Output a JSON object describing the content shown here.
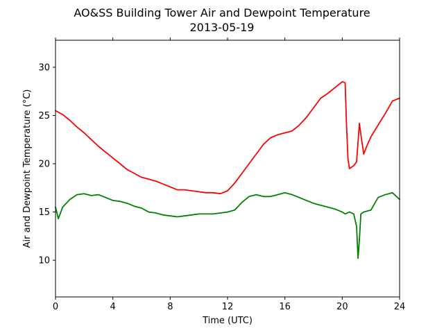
{
  "chart_data": {
    "type": "line",
    "title": "AO&SS Building Tower Air and Dewpoint Temperature",
    "subtitle": "2013-05-19",
    "xlabel": "Time (UTC)",
    "ylabel": "Air and Dewpoint Temperature (°C)",
    "xlim": [
      0,
      24
    ],
    "ylim": [
      6.2,
      32.8
    ],
    "x_ticks": [
      0,
      4,
      8,
      12,
      16,
      20,
      24
    ],
    "y_ticks": [
      10,
      15,
      20,
      25,
      30
    ],
    "grid": false,
    "series": [
      {
        "color": "#ff0000",
        "x": [
          0,
          0.5,
          1,
          1.5,
          2,
          2.5,
          3,
          3.5,
          4,
          4.5,
          5,
          5.5,
          6,
          6.5,
          7,
          7.5,
          8,
          8.5,
          9,
          9.5,
          10,
          10.5,
          11,
          11.5,
          12,
          12.5,
          13,
          13.5,
          14,
          14.5,
          15,
          15.5,
          16,
          16.5,
          17,
          17.5,
          18,
          18.5,
          19,
          19.5,
          20,
          20.2,
          20.3,
          20.4,
          20.5,
          20.8,
          21,
          21.2,
          21.3,
          21.5,
          21.7,
          22,
          22.5,
          23,
          23.5,
          24
        ],
        "y": [
          25.5,
          25.1,
          24.5,
          23.8,
          23.2,
          22.5,
          21.8,
          21.2,
          20.6,
          20.0,
          19.4,
          19.0,
          18.6,
          18.4,
          18.2,
          17.9,
          17.6,
          17.3,
          17.3,
          17.2,
          17.1,
          17.0,
          17.0,
          16.9,
          17.2,
          18.0,
          19.0,
          20.0,
          21.0,
          22.0,
          22.7,
          23.0,
          23.2,
          23.4,
          24.0,
          24.8,
          25.8,
          26.8,
          27.3,
          27.9,
          28.5,
          28.4,
          24.0,
          20.5,
          19.5,
          19.8,
          20.2,
          24.2,
          23.0,
          21.0,
          21.8,
          22.8,
          24.0,
          25.2,
          26.5,
          26.8
        ]
      },
      {
        "color": "#008000",
        "x": [
          0,
          0.2,
          0.5,
          1,
          1.5,
          2,
          2.5,
          3,
          3.5,
          4,
          4.5,
          5,
          5.5,
          6,
          6.5,
          7,
          7.5,
          8,
          8.5,
          9,
          9.5,
          10,
          10.5,
          11,
          11.5,
          12,
          12.5,
          13,
          13.5,
          14,
          14.5,
          15,
          15.5,
          16,
          16.5,
          17,
          17.5,
          18,
          18.5,
          19,
          19.5,
          20,
          20.2,
          20.5,
          20.8,
          21,
          21.1,
          21.2,
          21.3,
          21.5,
          22,
          22.5,
          23,
          23.5,
          24
        ],
        "y": [
          15.5,
          14.3,
          15.5,
          16.3,
          16.8,
          16.9,
          16.7,
          16.8,
          16.5,
          16.2,
          16.1,
          15.9,
          15.6,
          15.4,
          15.0,
          14.9,
          14.7,
          14.6,
          14.5,
          14.6,
          14.7,
          14.8,
          14.8,
          14.8,
          14.9,
          15.0,
          15.2,
          16.0,
          16.6,
          16.8,
          16.6,
          16.6,
          16.8,
          17.0,
          16.8,
          16.5,
          16.2,
          15.9,
          15.7,
          15.5,
          15.3,
          15.0,
          14.8,
          15.0,
          14.8,
          13.5,
          10.2,
          12.2,
          14.8,
          15.0,
          15.2,
          16.5,
          16.8,
          17.0,
          16.3
        ]
      }
    ]
  }
}
